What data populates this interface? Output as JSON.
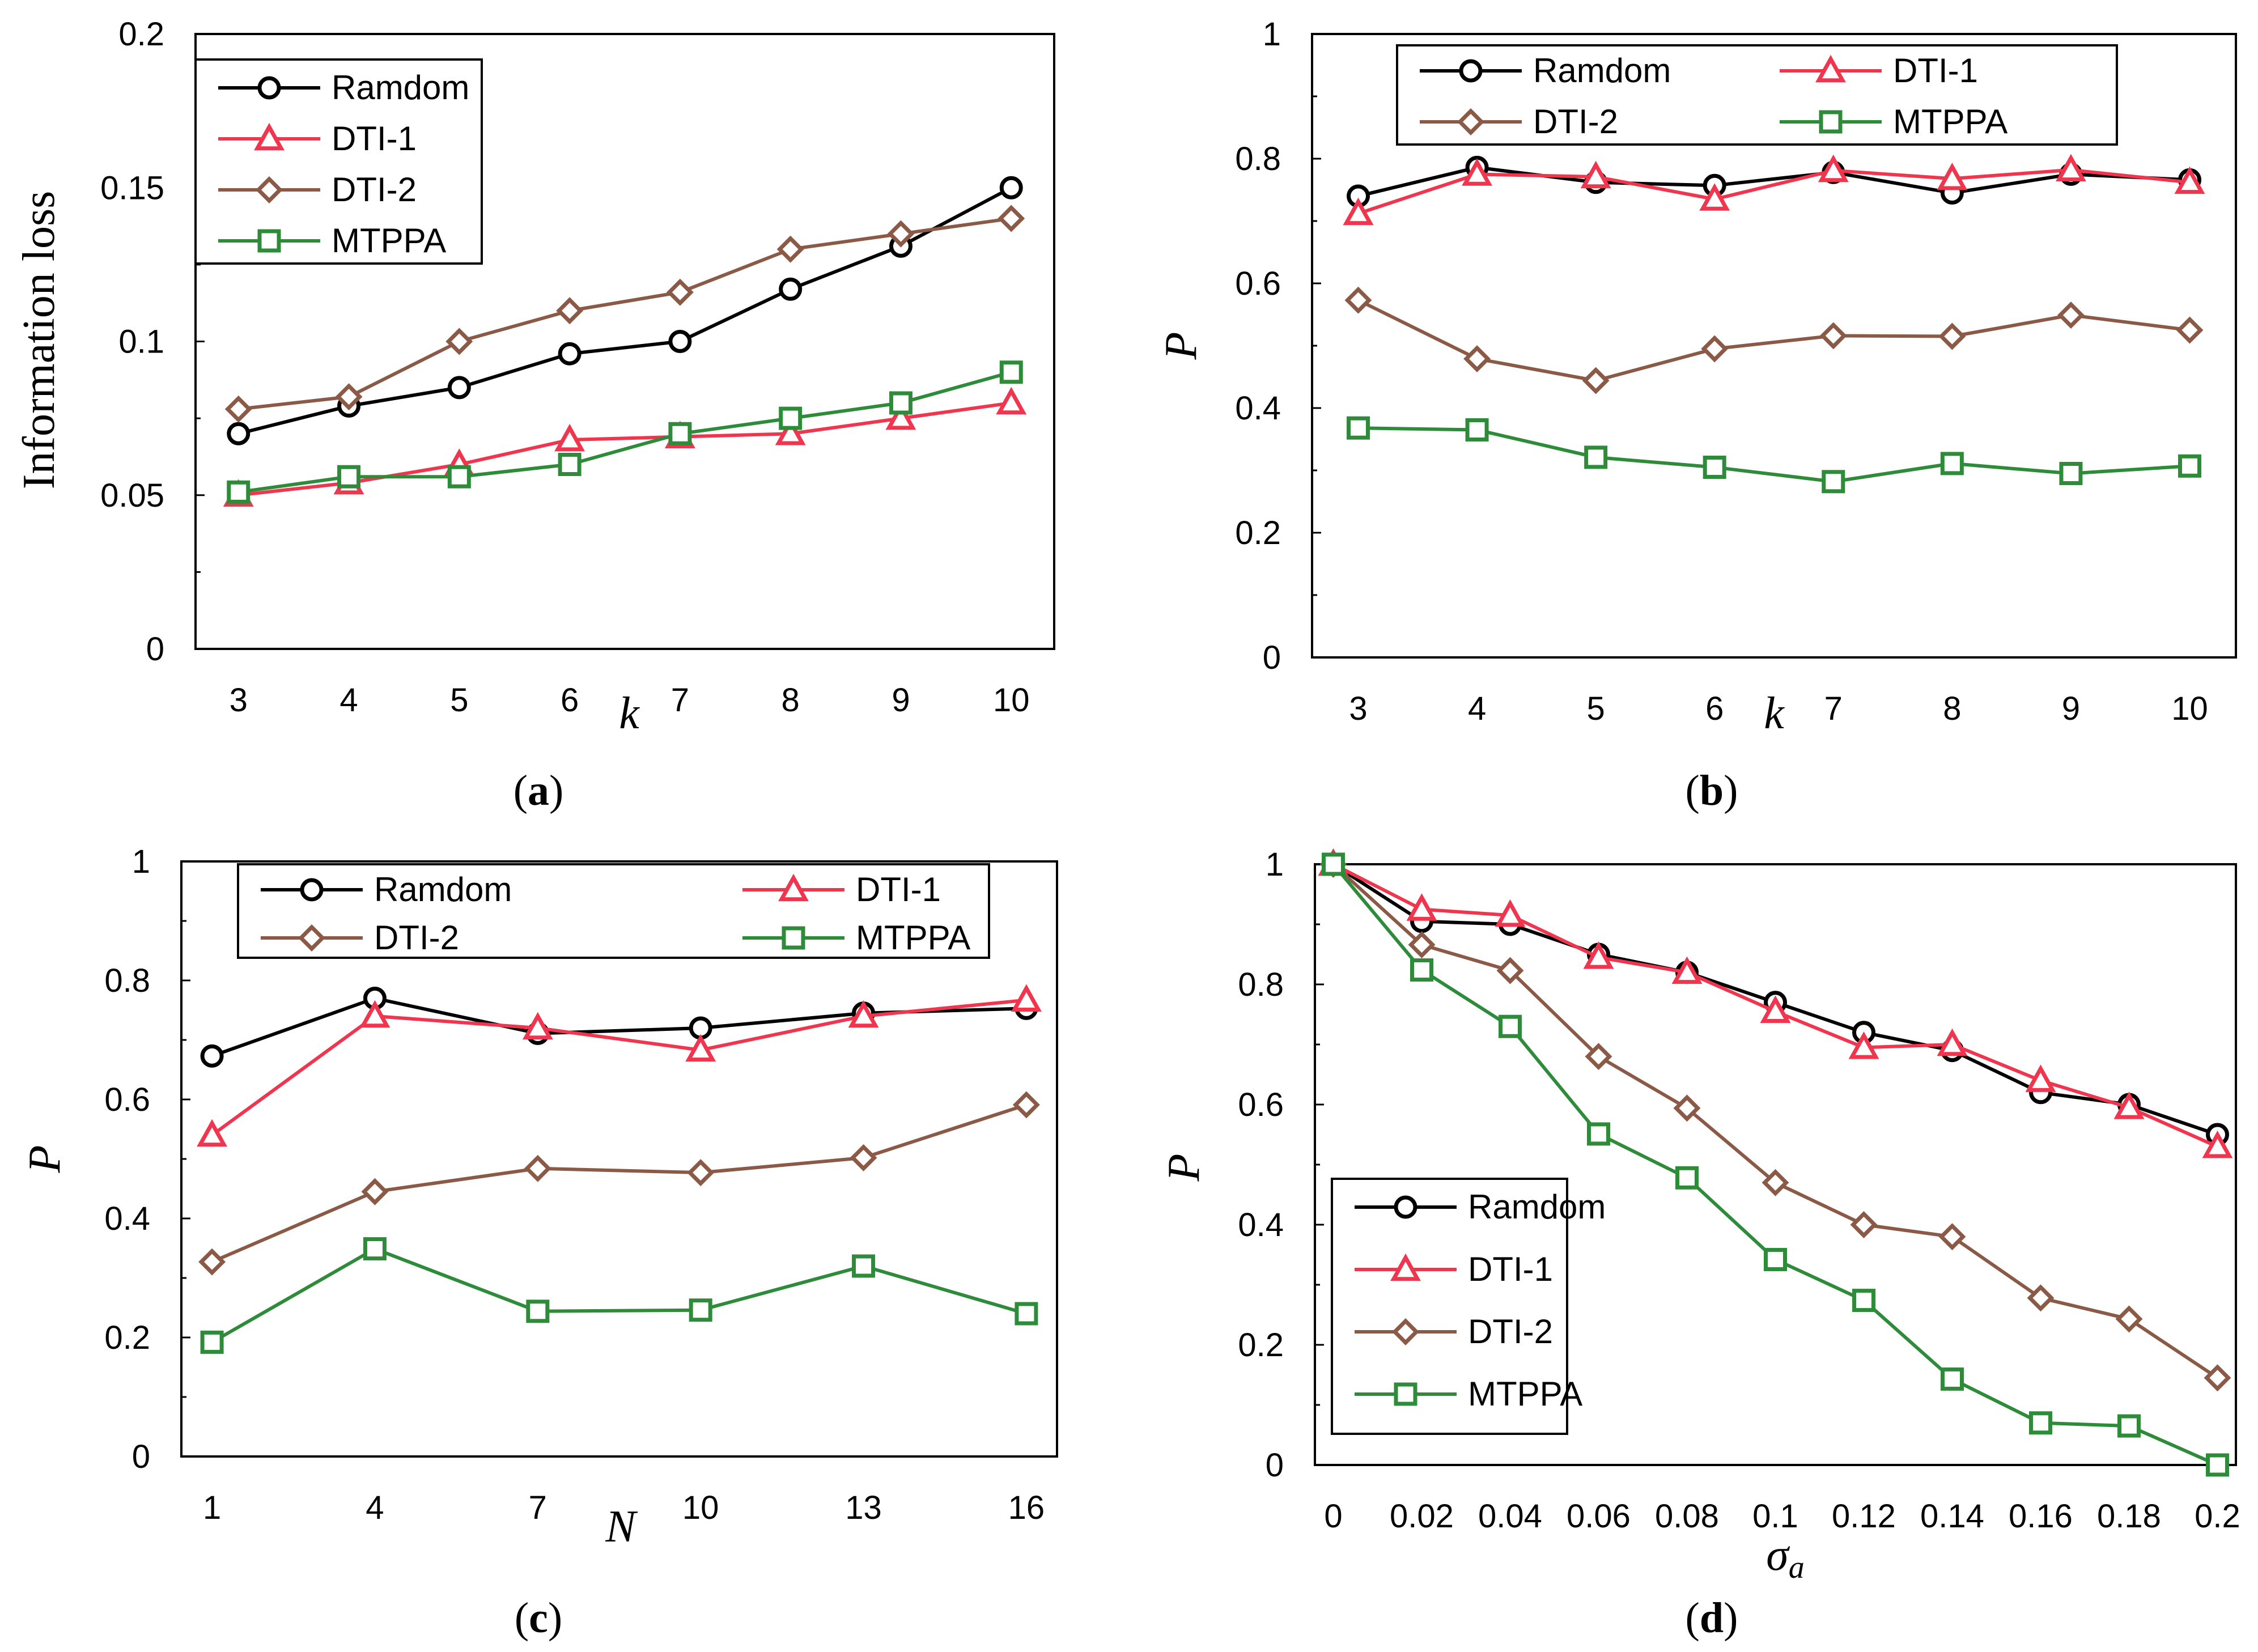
{
  "chart_data": [
    {
      "type": "line",
      "panel": "a",
      "caption": "(a)",
      "caption_letter": "a",
      "xlabel": "k",
      "xlabel_sub": "",
      "ylabel": "Information loss",
      "categories": [
        "3",
        "4",
        "5",
        "6",
        "7",
        "8",
        "9",
        "10"
      ],
      "y_ticks": [
        "0",
        "0.05",
        "0.1",
        "0.15",
        "0.2"
      ],
      "ylim": [
        0,
        0.2
      ],
      "legend_position": "top-left",
      "series": [
        {
          "name": "Ramdom",
          "color": "#000000",
          "marker": "circle",
          "values": [
            0.07,
            0.079,
            0.085,
            0.096,
            0.1,
            0.117,
            0.131,
            0.15
          ]
        },
        {
          "name": "DTI-1",
          "color": "#f0354f",
          "marker": "triangle",
          "values": [
            0.05,
            0.054,
            0.06,
            0.068,
            0.069,
            0.07,
            0.075,
            0.08
          ]
        },
        {
          "name": "DTI-2",
          "color": "#8b5a47",
          "marker": "diamond",
          "values": [
            0.078,
            0.082,
            0.1,
            0.11,
            0.116,
            0.13,
            0.135,
            0.14
          ]
        },
        {
          "name": "MTPPA",
          "color": "#2e8b3a",
          "marker": "square",
          "values": [
            0.051,
            0.056,
            0.056,
            0.06,
            0.07,
            0.075,
            0.08,
            0.09
          ]
        }
      ]
    },
    {
      "type": "line",
      "panel": "b",
      "caption": "(b)",
      "caption_letter": "b",
      "xlabel": "k",
      "xlabel_sub": "",
      "ylabel": "P",
      "categories": [
        "3",
        "4",
        "5",
        "6",
        "7",
        "8",
        "9",
        "10"
      ],
      "y_ticks": [
        "0",
        "0.2",
        "0.4",
        "0.6",
        "0.8",
        "1"
      ],
      "ylim": [
        0,
        1
      ],
      "legend_position": "top",
      "series": [
        {
          "name": "Ramdom",
          "color": "#000000",
          "marker": "circle",
          "values": [
            0.74,
            0.786,
            0.762,
            0.757,
            0.778,
            0.745,
            0.775,
            0.766
          ]
        },
        {
          "name": "DTI-1",
          "color": "#f0354f",
          "marker": "triangle",
          "values": [
            0.712,
            0.775,
            0.771,
            0.735,
            0.781,
            0.768,
            0.782,
            0.762
          ]
        },
        {
          "name": "DTI-2",
          "color": "#8b5a47",
          "marker": "diamond",
          "values": [
            0.573,
            0.479,
            0.444,
            0.495,
            0.516,
            0.515,
            0.549,
            0.525
          ]
        },
        {
          "name": "MTPPA",
          "color": "#2e8b3a",
          "marker": "square",
          "values": [
            0.368,
            0.365,
            0.321,
            0.305,
            0.282,
            0.311,
            0.295,
            0.307
          ]
        }
      ]
    },
    {
      "type": "line",
      "panel": "c",
      "caption": "(c)",
      "caption_letter": "c",
      "xlabel": "N",
      "xlabel_sub": "",
      "ylabel": "P",
      "categories": [
        "1",
        "4",
        "7",
        "10",
        "13",
        "16"
      ],
      "y_ticks": [
        "0",
        "0.2",
        "0.4",
        "0.6",
        "0.8",
        "1"
      ],
      "ylim": [
        0,
        1
      ],
      "legend_position": "top",
      "series": [
        {
          "name": "Ramdom",
          "color": "#000000",
          "marker": "circle",
          "values": [
            0.673,
            0.77,
            0.711,
            0.72,
            0.745,
            0.753
          ]
        },
        {
          "name": "DTI-1",
          "color": "#f0354f",
          "marker": "triangle",
          "values": [
            0.54,
            0.74,
            0.72,
            0.683,
            0.74,
            0.767
          ]
        },
        {
          "name": "DTI-2",
          "color": "#8b5a47",
          "marker": "diamond",
          "values": [
            0.327,
            0.445,
            0.484,
            0.477,
            0.502,
            0.591
          ]
        },
        {
          "name": "MTPPA",
          "color": "#2e8b3a",
          "marker": "square",
          "values": [
            0.192,
            0.349,
            0.244,
            0.246,
            0.32,
            0.24
          ]
        }
      ]
    },
    {
      "type": "line",
      "panel": "d",
      "caption": "(d)",
      "caption_letter": "d",
      "xlabel": "σ",
      "xlabel_sub": "a",
      "ylabel": "P",
      "categories": [
        "0",
        "0.02",
        "0.04",
        "0.06",
        "0.08",
        "0.1",
        "0.12",
        "0.14",
        "0.16",
        "0.18",
        "0.2"
      ],
      "y_ticks": [
        "0",
        "0.2",
        "0.4",
        "0.6",
        "0.8",
        "1"
      ],
      "ylim": [
        0,
        1
      ],
      "legend_position": "bottom-left",
      "series": [
        {
          "name": "Ramdom",
          "color": "#000000",
          "marker": "circle",
          "values": [
            1.0,
            0.905,
            0.9,
            0.85,
            0.82,
            0.77,
            0.72,
            0.69,
            0.62,
            0.6,
            0.55
          ]
        },
        {
          "name": "DTI-1",
          "color": "#f0354f",
          "marker": "triangle",
          "values": [
            1.0,
            0.925,
            0.915,
            0.845,
            0.82,
            0.755,
            0.695,
            0.7,
            0.64,
            0.595,
            0.53
          ]
        },
        {
          "name": "DTI-2",
          "color": "#8b5a47",
          "marker": "diamond",
          "values": [
            1.0,
            0.866,
            0.823,
            0.68,
            0.594,
            0.47,
            0.4,
            0.38,
            0.278,
            0.243,
            0.145
          ]
        },
        {
          "name": "MTPPA",
          "color": "#2e8b3a",
          "marker": "square",
          "values": [
            1.0,
            0.824,
            0.73,
            0.551,
            0.478,
            0.342,
            0.274,
            0.143,
            0.07,
            0.065,
            0.0
          ]
        }
      ]
    }
  ]
}
